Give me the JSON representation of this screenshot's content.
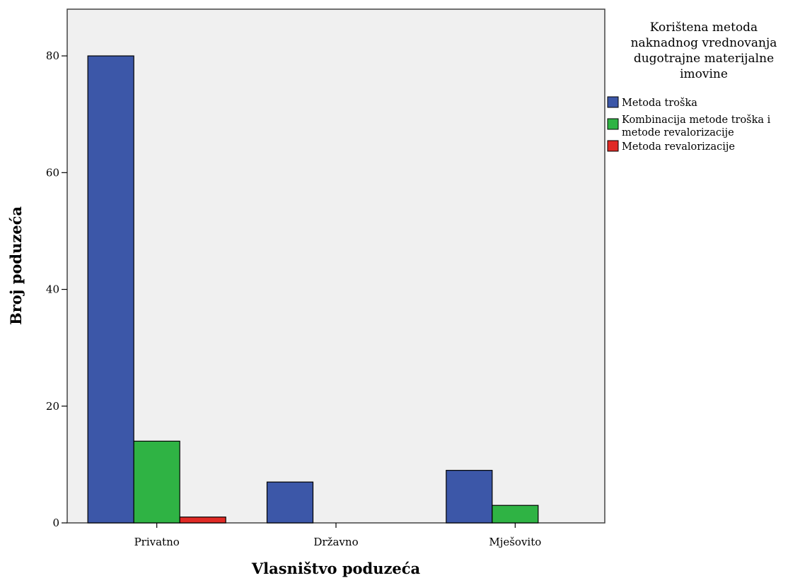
{
  "chart_data": {
    "type": "bar",
    "title": "",
    "xlabel": "Vlasništvo poduzeća",
    "ylabel": "Broj poduzeća",
    "categories": [
      "Privatno",
      "Državno",
      "Mješovito"
    ],
    "ylim": [
      0,
      88
    ],
    "yticks": [
      0,
      20,
      40,
      60,
      80
    ],
    "grid": false,
    "legend_position": "right",
    "legend_title": [
      "Korištena metoda",
      "naknadnog vrednovanja",
      "dugotrajne materijalne",
      "imovine"
    ],
    "series": [
      {
        "name": "Metoda troška",
        "label_lines": [
          "Metoda troška"
        ],
        "color": "#3c57a8",
        "values": [
          80,
          7,
          9
        ]
      },
      {
        "name": "Kombinacija metode troška i metode revalorizacije",
        "label_lines": [
          "Kombinacija metode troška i",
          "metode revalorizacije"
        ],
        "color": "#2fb344",
        "values": [
          14,
          0,
          3
        ]
      },
      {
        "name": "Metoda revalorizacije",
        "label_lines": [
          "Metoda revalorizacije"
        ],
        "color": "#e02a25",
        "values": [
          1,
          0,
          0
        ]
      }
    ],
    "plot_background": "#f0f0f0"
  }
}
